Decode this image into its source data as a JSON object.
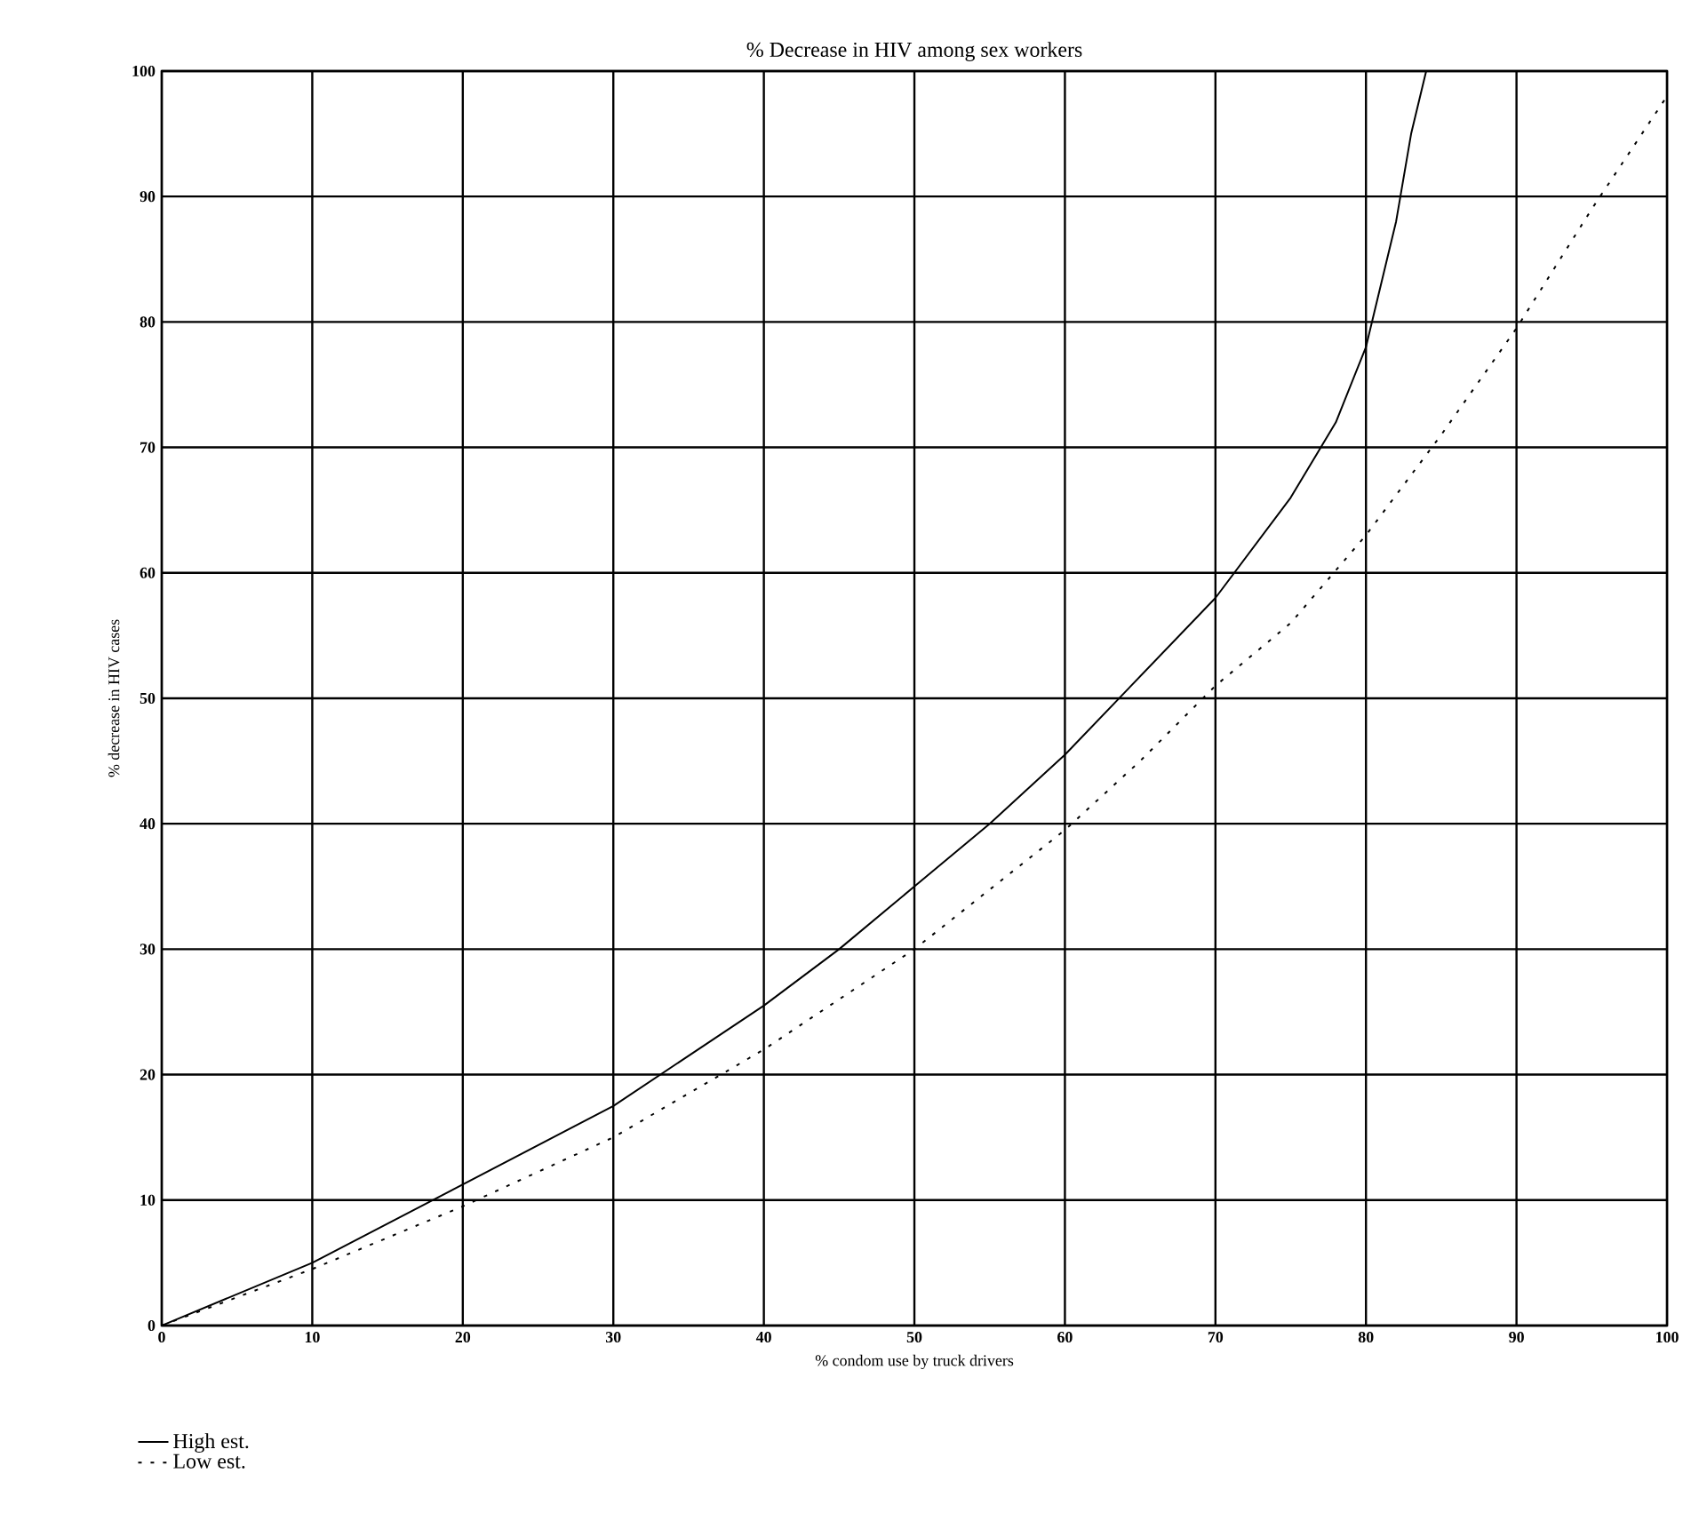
{
  "chart_data": {
    "type": "line",
    "title": "% Decrease in HIV among sex workers",
    "xlabel": "% condom use by truck drivers",
    "ylabel": "% decrease in HIV cases",
    "xlim": [
      0,
      100
    ],
    "ylim": [
      0,
      100
    ],
    "xticks": [
      0,
      10,
      20,
      30,
      40,
      50,
      60,
      70,
      80,
      90,
      100
    ],
    "yticks": [
      0,
      10,
      20,
      30,
      40,
      50,
      60,
      70,
      80,
      90,
      100
    ],
    "grid": true,
    "legend": "bottom left",
    "series": [
      {
        "name": "High est.",
        "color": "#000000",
        "line_style": "solid",
        "x": [
          0,
          10,
          18,
          30,
          40,
          45,
          50,
          55,
          60,
          70,
          75,
          78,
          80,
          82,
          83,
          84
        ],
        "values": [
          0,
          5,
          10,
          17.5,
          25.5,
          30,
          35,
          40,
          45.5,
          58,
          66,
          72,
          78,
          88,
          95,
          100
        ]
      },
      {
        "name": "Low est.",
        "color": "#000000",
        "line_style": "dotted",
        "x": [
          0,
          10,
          20,
          30,
          35,
          40,
          50,
          60,
          65,
          70,
          75,
          80,
          85,
          90,
          95,
          100
        ],
        "values": [
          0,
          4.5,
          9.5,
          15,
          18.5,
          22,
          30,
          39.5,
          45,
          51,
          56,
          63,
          71,
          79.5,
          89,
          98
        ]
      }
    ]
  }
}
